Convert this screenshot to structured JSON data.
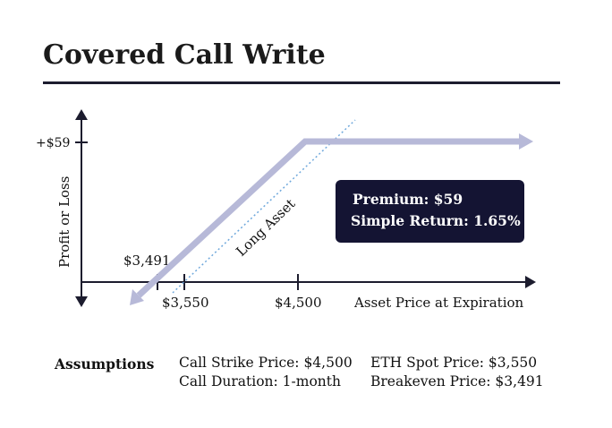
{
  "title": "Covered Call Write",
  "colors": {
    "payoff_line": "#b7b9d8",
    "long_asset_line": "#6fa8dc",
    "axis": "#1c1c2e",
    "info_box_bg": "#141433",
    "info_box_text": "#ffffff"
  },
  "chart_data": {
    "type": "line",
    "title": "",
    "xlabel": "Asset Price at Expiration",
    "ylabel": "Profit or Loss",
    "x_ticks": [
      {
        "value": 3491,
        "label": "$3,491"
      },
      {
        "value": 3550,
        "label": "$3,550"
      },
      {
        "value": 4500,
        "label": "$4,500"
      }
    ],
    "y_ticks": [
      {
        "value": 59,
        "label": "+$59"
      }
    ],
    "xlim": [
      3350,
      5000
    ],
    "ylim": [
      -12,
      70
    ],
    "series": [
      {
        "style": "thick-arrow",
        "x": [
          3335,
          4500,
          5000
        ],
        "y": [
          -14,
          59,
          59
        ]
      },
      {
        "name": "Long Asset",
        "style": "dotted",
        "x": [
          3550,
          4350
        ],
        "y": [
          0,
          80
        ]
      }
    ],
    "annotations": [
      "Premium: $59",
      "Simple Return: 1.65%"
    ]
  },
  "info_box": {
    "premium": "Premium: $59",
    "simple_return": "Simple Return: 1.65%"
  },
  "assumptions": {
    "label": "Assumptions",
    "col1": [
      "Call Strike Price: $4,500",
      "Call Duration: 1-month"
    ],
    "col2": [
      "ETH Spot Price: $3,550",
      "Breakeven Price: $3,491"
    ]
  }
}
